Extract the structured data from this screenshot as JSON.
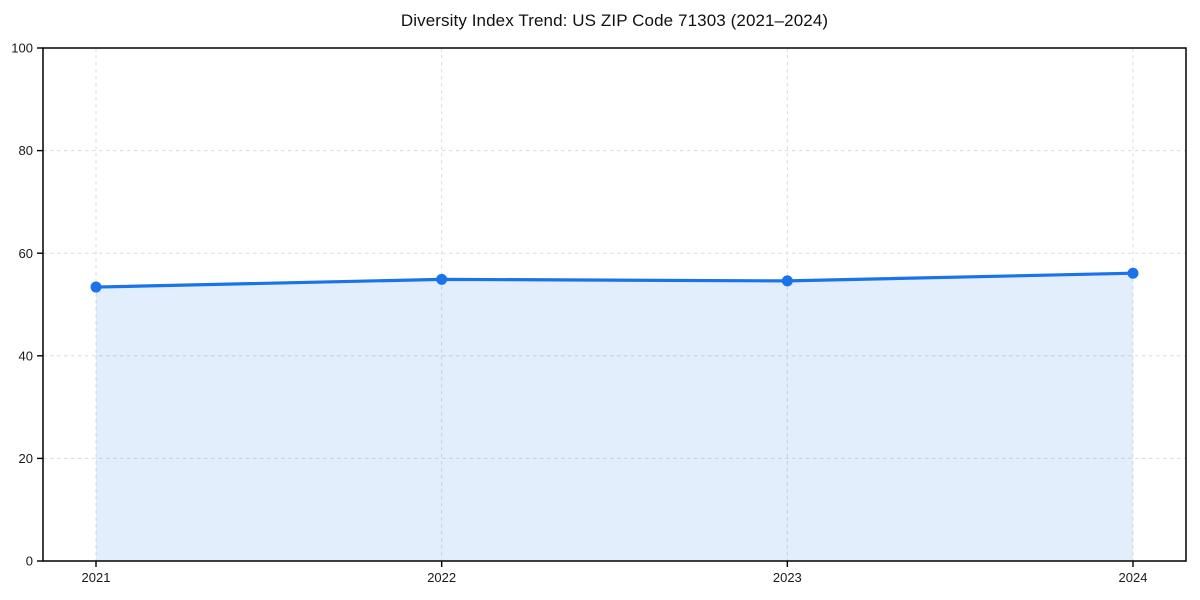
{
  "title": "Diversity Index Trend: US ZIP Code 71303 (2021–2024)",
  "chart_data": {
    "type": "line",
    "title": "Diversity Index Trend: US ZIP Code 71303 (2021–2024)",
    "x": [
      "2021",
      "2022",
      "2023",
      "2024"
    ],
    "series": [
      {
        "name": "Diversity Index",
        "values": [
          53.4,
          54.9,
          54.6,
          56.1
        ]
      }
    ],
    "xlabel": "",
    "ylabel": "",
    "ylim": [
      0,
      100
    ],
    "yticks": [
      0,
      20,
      40,
      60,
      80,
      100
    ],
    "grid": true,
    "grid_style": "dashed",
    "legend_position": "none",
    "area_fill": true,
    "marker": "circle",
    "colors": {
      "line": "#1a73e8",
      "marker": "#1a73e8",
      "fill": "#1a73e8",
      "fill_opacity": 0.12,
      "grid": "#dcdcdc",
      "axis": "#000000",
      "tick_text": "#1a1a1a"
    }
  }
}
